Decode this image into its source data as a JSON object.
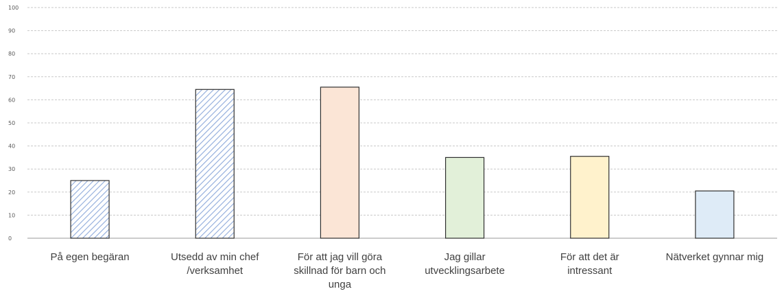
{
  "chart_data": {
    "type": "bar",
    "categories": [
      "På egen begäran",
      "Utsedd av min chef /verksamhet",
      "För att jag vill göra skillnad för barn och unga",
      "Jag gillar utvecklingsarbete",
      "För att det är intressant",
      "Nätverket gynnar mig"
    ],
    "category_lines": [
      [
        "På egen begäran"
      ],
      [
        "Utsedd av min chef",
        "/verksamhet"
      ],
      [
        "För att jag vill göra",
        "skillnad för barn och",
        "unga"
      ],
      [
        "Jag gillar",
        "utvecklingsarbete"
      ],
      [
        "För att det är",
        "intressant"
      ],
      [
        "Nätverket gynnar mig"
      ]
    ],
    "values": [
      25,
      64.5,
      65.5,
      35,
      35.5,
      20.5
    ],
    "ylim": [
      0,
      100
    ],
    "yticks": [
      0,
      10,
      20,
      30,
      40,
      50,
      60,
      70,
      80,
      90,
      100
    ],
    "grid": true,
    "title": "",
    "xlabel": "",
    "ylabel": "",
    "bar_styles": [
      {
        "pattern": "hatch",
        "color": "#8eaadb"
      },
      {
        "pattern": "hatch",
        "color": "#8eaadb"
      },
      {
        "pattern": "solid",
        "color": "#fbe5d6"
      },
      {
        "pattern": "solid",
        "color": "#e2f0d9"
      },
      {
        "pattern": "solid",
        "color": "#fff2cc"
      },
      {
        "pattern": "solid",
        "color": "#deebf7"
      }
    ]
  }
}
